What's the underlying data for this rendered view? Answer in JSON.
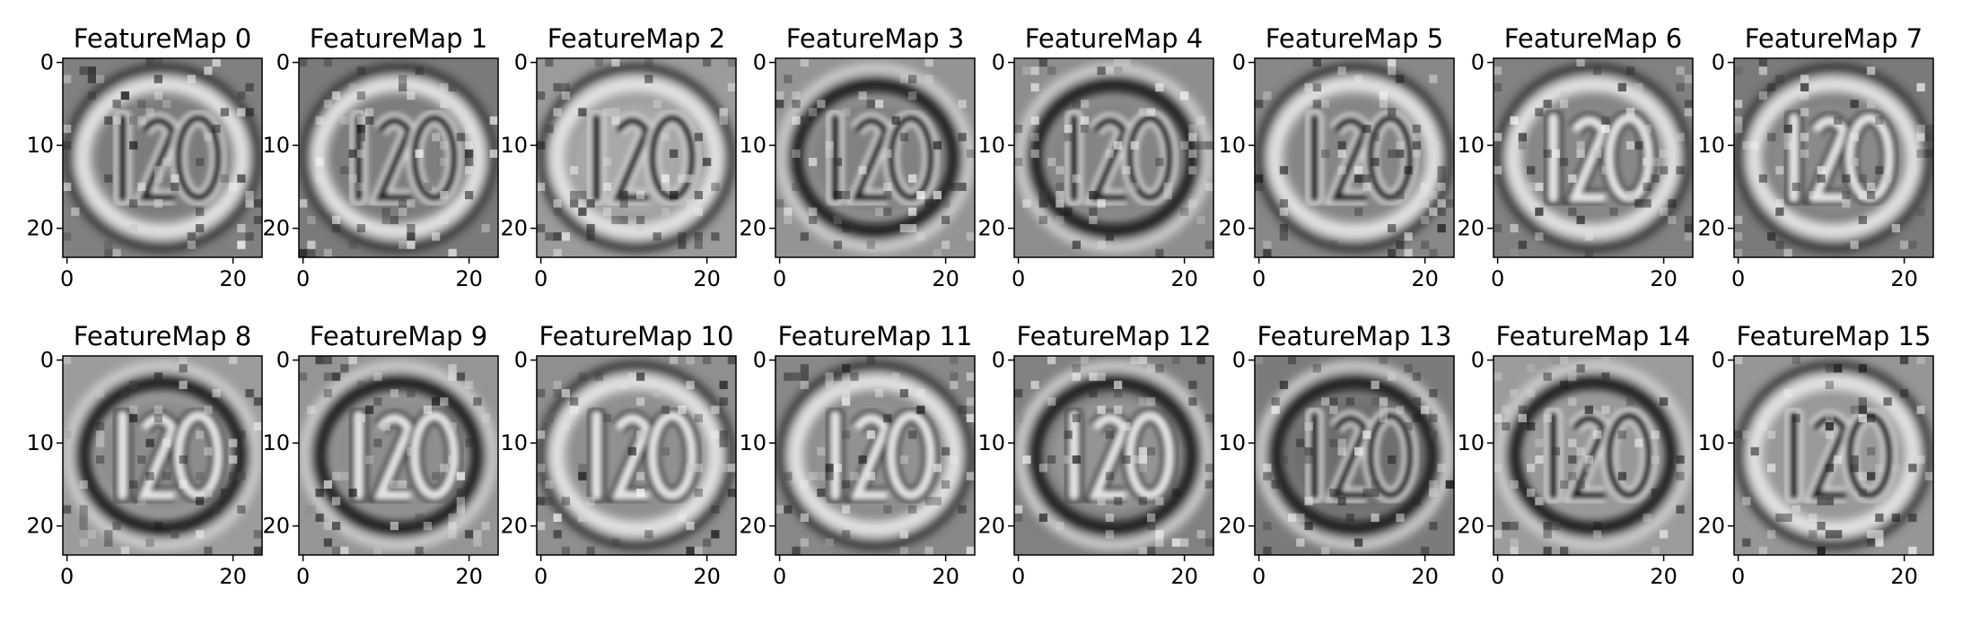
{
  "figure": {
    "rows": 2,
    "cols": 8,
    "colormap": "gray",
    "panels": [
      {
        "title": "FeatureMap 0"
      },
      {
        "title": "FeatureMap 1"
      },
      {
        "title": "FeatureMap 2"
      },
      {
        "title": "FeatureMap 3"
      },
      {
        "title": "FeatureMap 4"
      },
      {
        "title": "FeatureMap 5"
      },
      {
        "title": "FeatureMap 6"
      },
      {
        "title": "FeatureMap 7"
      },
      {
        "title": "FeatureMap 8"
      },
      {
        "title": "FeatureMap 9"
      },
      {
        "title": "FeatureMap 10"
      },
      {
        "title": "FeatureMap 11"
      },
      {
        "title": "FeatureMap 12"
      },
      {
        "title": "FeatureMap 13"
      },
      {
        "title": "FeatureMap 14"
      },
      {
        "title": "FeatureMap 15"
      }
    ],
    "image_extent": [
      0,
      24
    ],
    "x_ticks": [
      "0",
      "20"
    ],
    "y_ticks": [
      "0",
      "10",
      "20"
    ],
    "depicted_digits": "120",
    "colors": {
      "background": "#ffffff",
      "frame": "#000000",
      "mid_gray": "#8f8f8f"
    }
  }
}
